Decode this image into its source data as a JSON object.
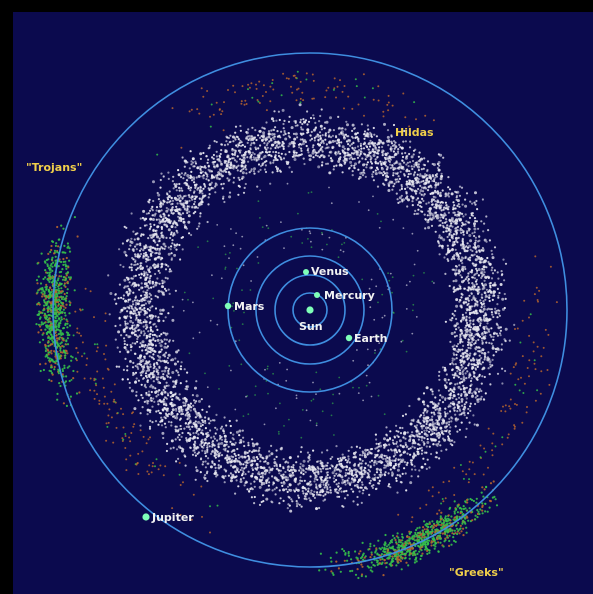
{
  "colors": {
    "background": "#0b0a4e",
    "frame": "#000000",
    "orbit": "#3f8ee0",
    "main_belt": "#e6e6ef",
    "trojan_green": "#35c04a",
    "hilda_orange": "#b7652e",
    "planet": "#7fffb8",
    "sun": "#7fffb8",
    "label_yellow": "#f0cf4a",
    "label_white": "#f2f2f2"
  },
  "bodies": {
    "sun": "Sun",
    "mercury": "Mercury",
    "venus": "Venus",
    "earth": "Earth",
    "mars": "Mars",
    "jupiter": "Jupiter"
  },
  "groups": {
    "trojans": "\"Trojans\"",
    "greeks": "\"Greeks\"",
    "hildas": "Hildas"
  }
}
